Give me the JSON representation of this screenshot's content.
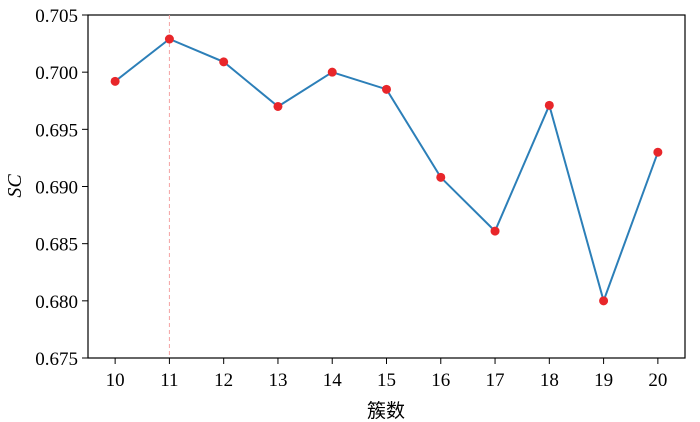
{
  "chart_data": {
    "type": "line",
    "x": [
      10,
      11,
      12,
      13,
      14,
      15,
      16,
      17,
      18,
      19,
      20
    ],
    "series": [
      {
        "values": [
          0.6992,
          0.7029,
          0.7009,
          0.697,
          0.7,
          0.6985,
          0.6908,
          0.6861,
          0.6971,
          0.68,
          0.693
        ],
        "line_color": "#2c7fb8",
        "marker_color": "#e8262a"
      }
    ],
    "reference_line": {
      "x": 11,
      "color": "#f4a3a3",
      "style": "dashed"
    },
    "xlabel": "簇数",
    "ylabel": "SC",
    "xlim": [
      9.5,
      20.5
    ],
    "ylim": [
      0.675,
      0.705
    ],
    "x_ticks": [
      "10",
      "11",
      "12",
      "13",
      "14",
      "15",
      "16",
      "17",
      "18",
      "19",
      "20"
    ],
    "y_ticks": [
      "0.675",
      "0.680",
      "0.685",
      "0.690",
      "0.695",
      "0.700",
      "0.705"
    ],
    "grid": false,
    "legend": "none"
  }
}
